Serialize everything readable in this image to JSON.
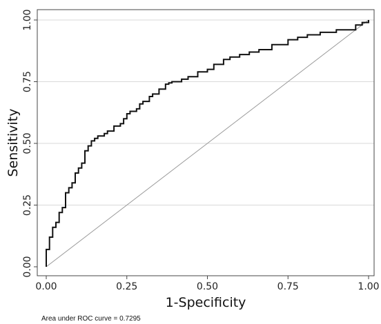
{
  "chart_data": {
    "type": "line",
    "xlabel": "1-Specificity",
    "ylabel": "Sensitivity",
    "xlim": [
      0,
      1
    ],
    "ylim": [
      0,
      1
    ],
    "x_ticks": [
      "0.00",
      "0.25",
      "0.50",
      "0.75",
      "1.00"
    ],
    "y_ticks": [
      "0.00",
      "0.25",
      "0.50",
      "0.75",
      "1.00"
    ],
    "grid": "horizontal",
    "legend": "none",
    "note": "Area under ROC curve = 0.7295",
    "colors": {
      "curve": "#111111",
      "reference": "#9a9a9a",
      "grid": "#d9d9d9",
      "frame": "#444444"
    },
    "series": [
      {
        "style": "step",
        "x": [
          0.0,
          0.0,
          0.01,
          0.01,
          0.02,
          0.02,
          0.03,
          0.04,
          0.04,
          0.05,
          0.06,
          0.06,
          0.07,
          0.08,
          0.09,
          0.09,
          0.1,
          0.11,
          0.12,
          0.12,
          0.13,
          0.14,
          0.15,
          0.16,
          0.17,
          0.18,
          0.19,
          0.21,
          0.23,
          0.24,
          0.25,
          0.26,
          0.28,
          0.29,
          0.3,
          0.32,
          0.33,
          0.35,
          0.37,
          0.38,
          0.39,
          0.4,
          0.42,
          0.44,
          0.47,
          0.5,
          0.52,
          0.55,
          0.57,
          0.6,
          0.63,
          0.66,
          0.7,
          0.75,
          0.78,
          0.81,
          0.85,
          0.9,
          0.94,
          0.96,
          0.98,
          1.0
        ],
        "y": [
          0.0,
          0.07,
          0.08,
          0.12,
          0.14,
          0.16,
          0.18,
          0.2,
          0.22,
          0.24,
          0.26,
          0.3,
          0.32,
          0.34,
          0.36,
          0.38,
          0.4,
          0.42,
          0.45,
          0.47,
          0.49,
          0.51,
          0.52,
          0.53,
          0.53,
          0.54,
          0.55,
          0.57,
          0.58,
          0.6,
          0.62,
          0.63,
          0.64,
          0.66,
          0.67,
          0.69,
          0.7,
          0.72,
          0.74,
          0.745,
          0.75,
          0.75,
          0.76,
          0.77,
          0.79,
          0.8,
          0.82,
          0.84,
          0.85,
          0.86,
          0.87,
          0.88,
          0.9,
          0.92,
          0.93,
          0.94,
          0.95,
          0.96,
          0.96,
          0.98,
          0.99,
          1.0
        ]
      },
      {
        "style": "reference",
        "x": [
          0,
          1
        ],
        "y": [
          0,
          1
        ]
      }
    ]
  }
}
